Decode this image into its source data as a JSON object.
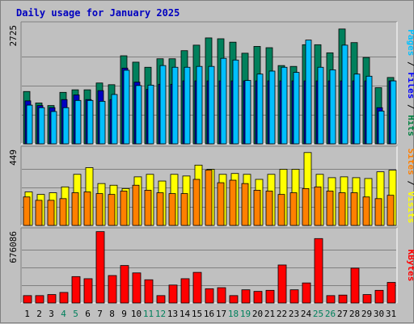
{
  "chart_data": {
    "type": "bar",
    "title": "Daily usage for January 2025",
    "categories": [
      "1",
      "2",
      "3",
      "4",
      "5",
      "6",
      "7",
      "8",
      "9",
      "10",
      "11",
      "12",
      "13",
      "14",
      "15",
      "16",
      "17",
      "18",
      "19",
      "20",
      "21",
      "22",
      "23",
      "24",
      "25",
      "26",
      "27",
      "28",
      "29",
      "30",
      "31"
    ],
    "weekend_days": [
      "4",
      "5",
      "11",
      "12",
      "18",
      "19",
      "25",
      "26"
    ],
    "panels": [
      {
        "name": "hits-files-pages",
        "ymax_label": "2725",
        "ymax": 2725,
        "legend": [
          {
            "text": "Pages",
            "color": "#00c0ff"
          },
          {
            "text": " / ",
            "color": "#000000"
          },
          {
            "text": "Files",
            "color": "#0000ff"
          },
          {
            "text": " / ",
            "color": "#000000"
          },
          {
            "text": "Hits",
            "color": "#008040"
          }
        ],
        "series": [
          {
            "name": "Hits",
            "color": "#00805c",
            "values": [
              1230,
              960,
              900,
              1210,
              1270,
              1270,
              1430,
              1390,
              2070,
              1920,
              1800,
              2000,
              2000,
              2190,
              2320,
              2490,
              2470,
              2390,
              2130,
              2290,
              2260,
              1840,
              1820,
              2330,
              2330,
              2140,
              2700,
              2380,
              2030,
              1320,
              1560
            ]
          },
          {
            "name": "Files",
            "color": "#0000c0",
            "values": [
              1010,
              900,
              850,
              1040,
              1150,
              1040,
              1250,
              1040,
              1780,
              1450,
              1280,
              1400,
              1400,
              1480,
              1480,
              1480,
              1480,
              1480,
              1480,
              1480,
              1480,
              1480,
              1480,
              1480,
              1480,
              1480,
              1480,
              1480,
              1480,
              850,
              1480
            ]
          },
          {
            "name": "Pages",
            "color": "#00bfff",
            "values": [
              910,
              850,
              760,
              850,
              1020,
              1020,
              1000,
              1160,
              1730,
              1370,
              1380,
              1840,
              1800,
              1800,
              1820,
              1820,
              2010,
              1970,
              1490,
              1640,
              1710,
              1800,
              1680,
              2440,
              1800,
              1740,
              2320,
              1640,
              1590,
              770,
              1480
            ]
          }
        ]
      },
      {
        "name": "visits-sites",
        "ymax_label": "449",
        "ymax": 449,
        "legend": [
          {
            "text": "Sites",
            "color": "#ff8000"
          },
          {
            "text": " / ",
            "color": "#000000"
          },
          {
            "text": "Visits",
            "color": "#ffff00"
          }
        ],
        "series": [
          {
            "name": "Visits",
            "color": "#ffff00",
            "values": [
              200,
              185,
              195,
              230,
              305,
              345,
              250,
              240,
              220,
              290,
              305,
              265,
              305,
              295,
              360,
              335,
              305,
              310,
              305,
              275,
              305,
              335,
              335,
              435,
              305,
              285,
              290,
              285,
              280,
              320,
              330
            ]
          },
          {
            "name": "Sites",
            "color": "#ff8000",
            "values": [
              170,
              150,
              150,
              160,
              195,
              200,
              190,
              185,
              205,
              240,
              210,
              195,
              190,
              190,
              275,
              330,
              255,
              270,
              250,
              210,
              205,
              185,
              195,
              220,
              230,
              205,
              195,
              195,
              170,
              160,
              180
            ]
          }
        ]
      },
      {
        "name": "kbytes",
        "ymax_label": "676086",
        "ymax": 676086,
        "legend": [
          {
            "text": "KBytes",
            "color": "#ff0000"
          }
        ],
        "series": [
          {
            "name": "KBytes",
            "color": "#ff0000",
            "values": [
              70000,
              70000,
              80000,
              100000,
              250000,
              230000,
              676086,
              260000,
              355000,
              285000,
              220000,
              70000,
              170000,
              230000,
              290000,
              135000,
              145000,
              70000,
              125000,
              110000,
              120000,
              360000,
              125000,
              190000,
              610000,
              70000,
              75000,
              330000,
              80000,
              120000,
              195000
            ]
          }
        ]
      }
    ]
  }
}
